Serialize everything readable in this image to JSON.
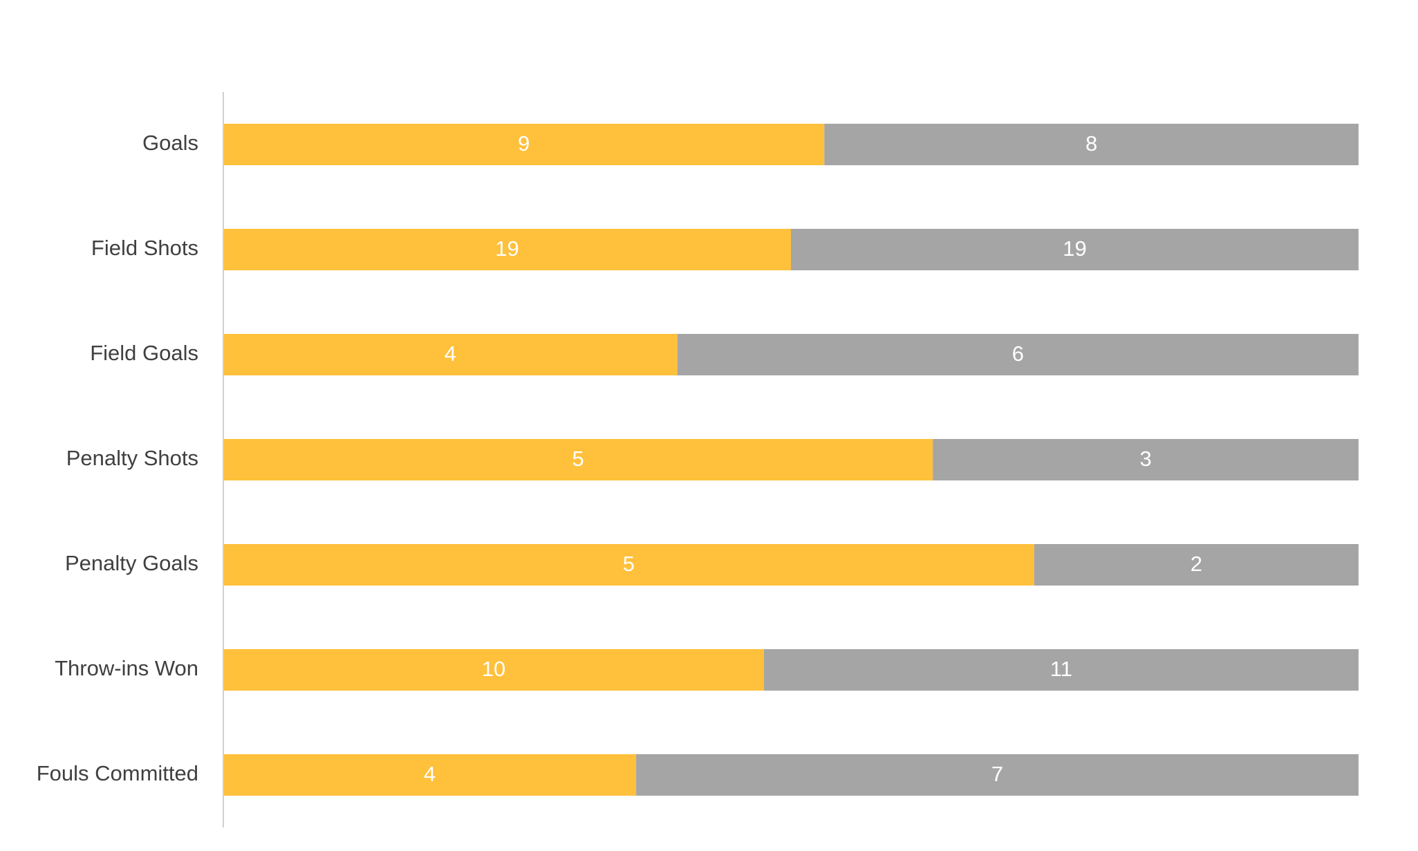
{
  "chart_data": {
    "type": "bar",
    "orientation": "horizontal",
    "stacked": "percent",
    "categories": [
      "Goals",
      "Field Shots",
      "Field Goals",
      "Penalty Shots",
      "Penalty Goals",
      "Throw-ins Won",
      "Fouls Committed"
    ],
    "series": [
      {
        "values": [
          9,
          19,
          4,
          5,
          5,
          10,
          4
        ],
        "color": "#FFC03B"
      },
      {
        "values": [
          8,
          19,
          6,
          3,
          2,
          11,
          7
        ],
        "color": "#A5A5A5"
      }
    ],
    "title": "",
    "xlabel": "",
    "ylabel": "",
    "grid": false,
    "legend": "none",
    "data_labels": true
  },
  "colors": {
    "axis": "#D0D0D0",
    "category_text": "#404040",
    "value_text": "#FFFFFF"
  }
}
